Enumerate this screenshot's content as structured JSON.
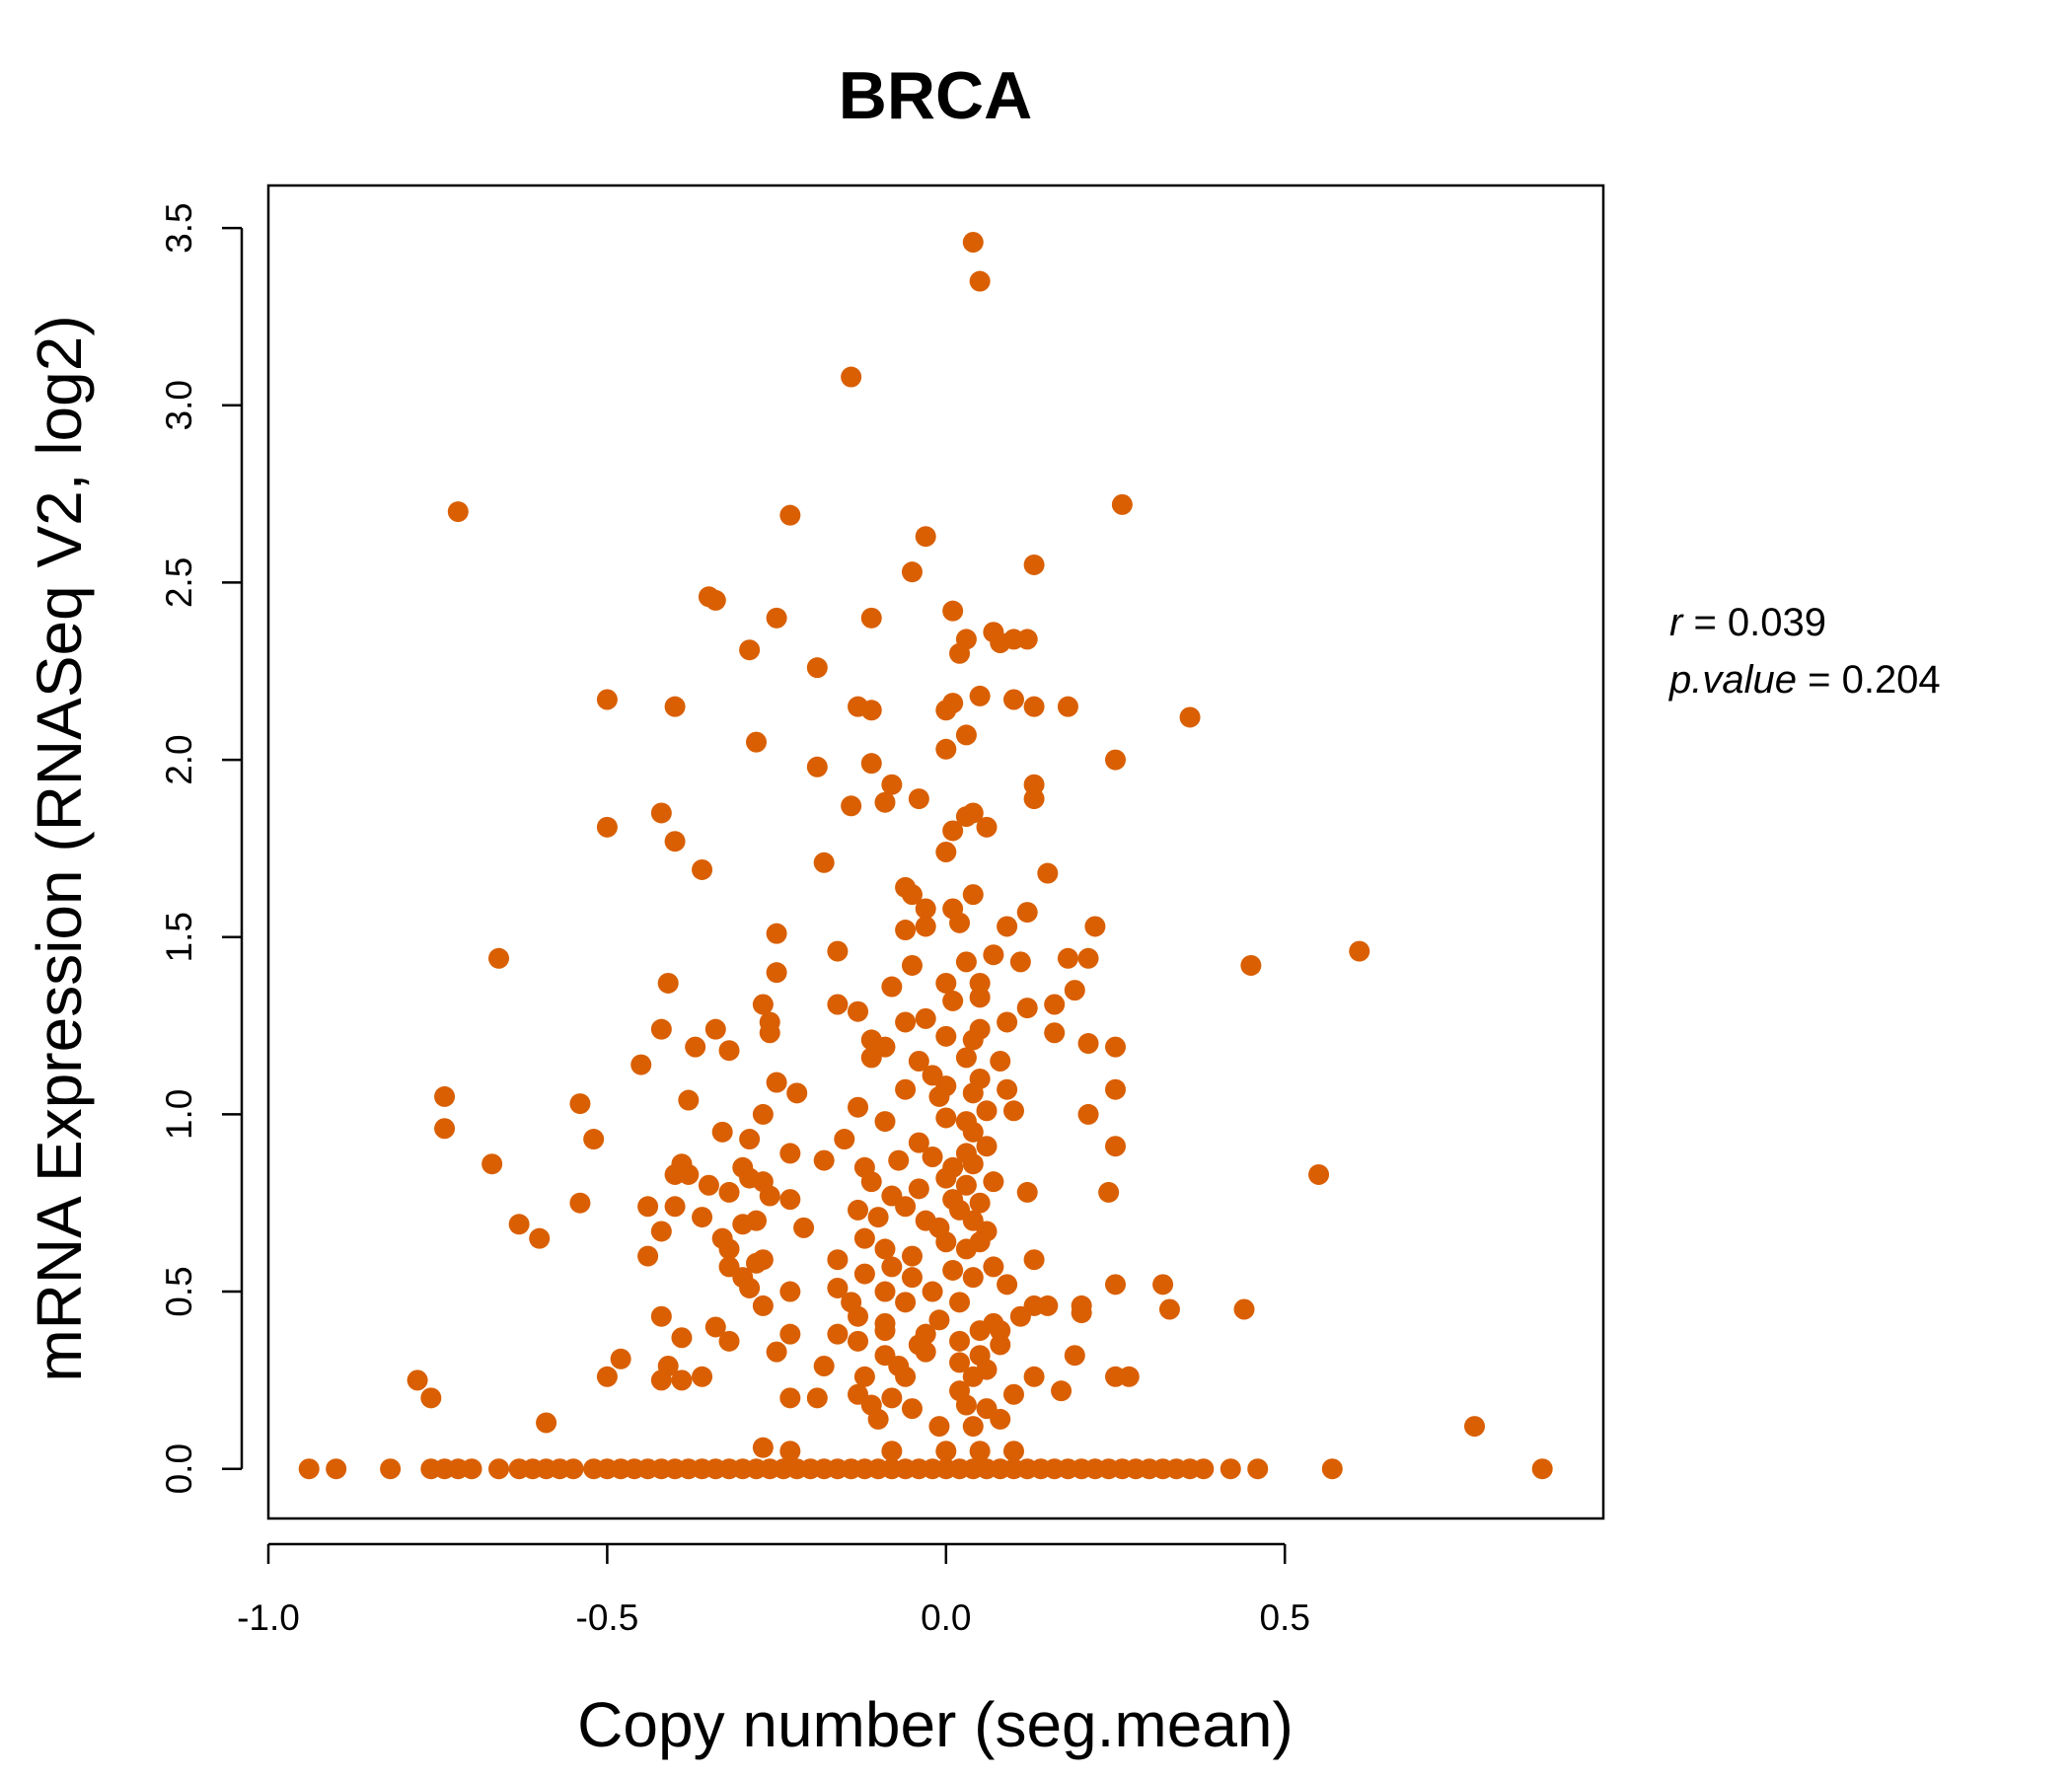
{
  "chart_data": {
    "type": "scatter",
    "title": "BRCA",
    "xlabel": "Copy number (seg.mean)",
    "ylabel": "mRNA Expression (RNASeq V2, log2)",
    "xlim": [
      -1.0,
      0.97
    ],
    "ylim": [
      -0.14,
      3.62
    ],
    "x_ticks": [
      -1.0,
      -0.5,
      0.0,
      0.5
    ],
    "x_tick_labels": [
      "-1.0",
      "-0.5",
      "0.0",
      "0.5"
    ],
    "y_ticks": [
      0.0,
      0.5,
      1.0,
      1.5,
      2.0,
      2.5,
      3.0,
      3.5
    ],
    "y_tick_labels": [
      "0.0",
      "0.5",
      "1.0",
      "1.5",
      "2.0",
      "2.5",
      "3.0",
      "3.5"
    ],
    "grid": false,
    "point_color": "#D95F02",
    "stats": {
      "r_symbol": "r",
      "r_value": "0.039",
      "p_symbol": "p.value",
      "p_value": "0.204"
    },
    "points": [
      [
        0.04,
        3.46
      ],
      [
        0.05,
        3.35
      ],
      [
        -0.14,
        3.08
      ],
      [
        -0.72,
        2.7
      ],
      [
        0.26,
        2.72
      ],
      [
        -0.23,
        2.69
      ],
      [
        -0.03,
        2.63
      ],
      [
        -0.05,
        2.53
      ],
      [
        0.13,
        2.55
      ],
      [
        -0.35,
        2.46
      ],
      [
        -0.34,
        2.45
      ],
      [
        -0.25,
        2.4
      ],
      [
        -0.11,
        2.4
      ],
      [
        0.01,
        2.42
      ],
      [
        0.03,
        2.34
      ],
      [
        0.07,
        2.36
      ],
      [
        0.08,
        2.33
      ],
      [
        0.1,
        2.34
      ],
      [
        0.12,
        2.34
      ],
      [
        0.02,
        2.3
      ],
      [
        -0.29,
        2.31
      ],
      [
        -0.19,
        2.26
      ],
      [
        -0.5,
        2.17
      ],
      [
        -0.4,
        2.15
      ],
      [
        -0.13,
        2.15
      ],
      [
        -0.11,
        2.14
      ],
      [
        0.0,
        2.14
      ],
      [
        0.01,
        2.16
      ],
      [
        0.05,
        2.18
      ],
      [
        0.1,
        2.17
      ],
      [
        0.13,
        2.15
      ],
      [
        0.18,
        2.15
      ],
      [
        0.36,
        2.12
      ],
      [
        0.03,
        2.07
      ],
      [
        -0.28,
        2.05
      ],
      [
        0.0,
        2.03
      ],
      [
        0.25,
        2.0
      ],
      [
        -0.19,
        1.98
      ],
      [
        -0.11,
        1.99
      ],
      [
        -0.08,
        1.93
      ],
      [
        0.13,
        1.93
      ],
      [
        -0.42,
        1.85
      ],
      [
        -0.14,
        1.87
      ],
      [
        -0.09,
        1.88
      ],
      [
        -0.04,
        1.89
      ],
      [
        0.03,
        1.84
      ],
      [
        0.04,
        1.85
      ],
      [
        0.13,
        1.89
      ],
      [
        -0.5,
        1.81
      ],
      [
        0.01,
        1.8
      ],
      [
        0.06,
        1.81
      ],
      [
        -0.4,
        1.77
      ],
      [
        0.0,
        1.74
      ],
      [
        -0.36,
        1.69
      ],
      [
        -0.18,
        1.71
      ],
      [
        0.15,
        1.68
      ],
      [
        -0.06,
        1.64
      ],
      [
        -0.05,
        1.62
      ],
      [
        0.04,
        1.62
      ],
      [
        -0.03,
        1.58
      ],
      [
        0.01,
        1.58
      ],
      [
        0.12,
        1.57
      ],
      [
        -0.25,
        1.51
      ],
      [
        -0.06,
        1.52
      ],
      [
        -0.03,
        1.53
      ],
      [
        0.02,
        1.54
      ],
      [
        0.09,
        1.53
      ],
      [
        0.22,
        1.53
      ],
      [
        -0.66,
        1.44
      ],
      [
        -0.16,
        1.46
      ],
      [
        -0.05,
        1.42
      ],
      [
        0.03,
        1.43
      ],
      [
        0.07,
        1.45
      ],
      [
        0.11,
        1.43
      ],
      [
        0.18,
        1.44
      ],
      [
        0.21,
        1.44
      ],
      [
        0.45,
        1.42
      ],
      [
        0.61,
        1.46
      ],
      [
        -0.25,
        1.4
      ],
      [
        -0.41,
        1.37
      ],
      [
        -0.08,
        1.36
      ],
      [
        0.0,
        1.37
      ],
      [
        0.05,
        1.37
      ],
      [
        0.19,
        1.35
      ],
      [
        -0.27,
        1.31
      ],
      [
        -0.16,
        1.31
      ],
      [
        -0.13,
        1.29
      ],
      [
        0.01,
        1.32
      ],
      [
        0.05,
        1.33
      ],
      [
        0.12,
        1.3
      ],
      [
        0.16,
        1.31
      ],
      [
        -0.26,
        1.26
      ],
      [
        -0.42,
        1.24
      ],
      [
        -0.34,
        1.24
      ],
      [
        -0.06,
        1.26
      ],
      [
        -0.03,
        1.27
      ],
      [
        0.05,
        1.24
      ],
      [
        0.09,
        1.26
      ],
      [
        -0.26,
        1.23
      ],
      [
        -0.11,
        1.21
      ],
      [
        0.16,
        1.23
      ],
      [
        -0.37,
        1.19
      ],
      [
        -0.32,
        1.18
      ],
      [
        -0.09,
        1.19
      ],
      [
        0.0,
        1.22
      ],
      [
        0.04,
        1.21
      ],
      [
        0.21,
        1.2
      ],
      [
        0.25,
        1.19
      ],
      [
        -0.45,
        1.14
      ],
      [
        -0.11,
        1.16
      ],
      [
        -0.04,
        1.15
      ],
      [
        0.03,
        1.16
      ],
      [
        0.08,
        1.15
      ],
      [
        -0.02,
        1.11
      ],
      [
        0.05,
        1.1
      ],
      [
        -0.25,
        1.09
      ],
      [
        -0.06,
        1.07
      ],
      [
        0.0,
        1.08
      ],
      [
        0.09,
        1.07
      ],
      [
        0.25,
        1.07
      ],
      [
        -0.74,
        1.05
      ],
      [
        -0.38,
        1.04
      ],
      [
        -0.22,
        1.06
      ],
      [
        -0.01,
        1.05
      ],
      [
        0.04,
        1.06
      ],
      [
        -0.54,
        1.03
      ],
      [
        -0.13,
        1.02
      ],
      [
        0.06,
        1.01
      ],
      [
        0.1,
        1.01
      ],
      [
        0.21,
        1.0
      ],
      [
        -0.27,
        1.0
      ],
      [
        -0.09,
        0.98
      ],
      [
        0.0,
        0.99
      ],
      [
        0.03,
        0.98
      ],
      [
        -0.74,
        0.96
      ],
      [
        -0.33,
        0.95
      ],
      [
        -0.29,
        0.93
      ],
      [
        0.04,
        0.95
      ],
      [
        -0.52,
        0.93
      ],
      [
        -0.15,
        0.93
      ],
      [
        -0.04,
        0.92
      ],
      [
        0.06,
        0.91
      ],
      [
        0.25,
        0.91
      ],
      [
        -0.23,
        0.89
      ],
      [
        -0.02,
        0.88
      ],
      [
        0.03,
        0.89
      ],
      [
        -0.67,
        0.86
      ],
      [
        -0.39,
        0.86
      ],
      [
        -0.3,
        0.85
      ],
      [
        -0.18,
        0.87
      ],
      [
        -0.12,
        0.85
      ],
      [
        -0.07,
        0.87
      ],
      [
        0.01,
        0.85
      ],
      [
        0.04,
        0.86
      ],
      [
        -0.4,
        0.83
      ],
      [
        -0.38,
        0.83
      ],
      [
        -0.29,
        0.82
      ],
      [
        -0.27,
        0.81
      ],
      [
        0.0,
        0.82
      ],
      [
        0.07,
        0.81
      ],
      [
        0.55,
        0.83
      ],
      [
        -0.35,
        0.8
      ],
      [
        -0.26,
        0.77
      ],
      [
        -0.11,
        0.81
      ],
      [
        -0.04,
        0.79
      ],
      [
        0.03,
        0.8
      ],
      [
        0.12,
        0.78
      ],
      [
        0.24,
        0.78
      ],
      [
        -0.32,
        0.78
      ],
      [
        -0.23,
        0.76
      ],
      [
        -0.08,
        0.77
      ],
      [
        0.01,
        0.76
      ],
      [
        0.05,
        0.75
      ],
      [
        -0.54,
        0.75
      ],
      [
        -0.44,
        0.74
      ],
      [
        -0.4,
        0.74
      ],
      [
        -0.13,
        0.73
      ],
      [
        -0.06,
        0.74
      ],
      [
        0.02,
        0.73
      ],
      [
        -0.36,
        0.71
      ],
      [
        -0.28,
        0.7
      ],
      [
        -0.1,
        0.71
      ],
      [
        -0.03,
        0.7
      ],
      [
        0.04,
        0.7
      ],
      [
        -0.63,
        0.69
      ],
      [
        -0.3,
        0.69
      ],
      [
        -0.42,
        0.67
      ],
      [
        -0.21,
        0.68
      ],
      [
        -0.01,
        0.68
      ],
      [
        0.06,
        0.67
      ],
      [
        -0.6,
        0.65
      ],
      [
        -0.33,
        0.65
      ],
      [
        -0.12,
        0.65
      ],
      [
        0.0,
        0.64
      ],
      [
        0.05,
        0.64
      ],
      [
        -0.32,
        0.62
      ],
      [
        -0.09,
        0.62
      ],
      [
        0.03,
        0.62
      ],
      [
        -0.27,
        0.59
      ],
      [
        -0.44,
        0.6
      ],
      [
        -0.16,
        0.59
      ],
      [
        -0.05,
        0.6
      ],
      [
        0.13,
        0.59
      ],
      [
        -0.32,
        0.57
      ],
      [
        -0.28,
        0.58
      ],
      [
        -0.08,
        0.57
      ],
      [
        0.01,
        0.56
      ],
      [
        0.07,
        0.57
      ],
      [
        -0.3,
        0.54
      ],
      [
        -0.12,
        0.55
      ],
      [
        -0.05,
        0.54
      ],
      [
        0.04,
        0.54
      ],
      [
        -0.29,
        0.51
      ],
      [
        -0.23,
        0.5
      ],
      [
        -0.16,
        0.51
      ],
      [
        -0.09,
        0.5
      ],
      [
        -0.02,
        0.5
      ],
      [
        0.09,
        0.52
      ],
      [
        0.25,
        0.52
      ],
      [
        0.32,
        0.52
      ],
      [
        -0.27,
        0.46
      ],
      [
        -0.14,
        0.47
      ],
      [
        -0.06,
        0.47
      ],
      [
        0.02,
        0.47
      ],
      [
        0.13,
        0.46
      ],
      [
        0.15,
        0.46
      ],
      [
        0.2,
        0.46
      ],
      [
        0.33,
        0.45
      ],
      [
        0.44,
        0.45
      ],
      [
        -0.42,
        0.43
      ],
      [
        -0.13,
        0.43
      ],
      [
        -0.09,
        0.41
      ],
      [
        -0.01,
        0.42
      ],
      [
        0.07,
        0.41
      ],
      [
        0.11,
        0.43
      ],
      [
        0.2,
        0.44
      ],
      [
        -0.34,
        0.4
      ],
      [
        -0.23,
        0.38
      ],
      [
        -0.16,
        0.38
      ],
      [
        -0.09,
        0.39
      ],
      [
        -0.03,
        0.38
      ],
      [
        0.05,
        0.39
      ],
      [
        0.08,
        0.39
      ],
      [
        -0.32,
        0.36
      ],
      [
        -0.39,
        0.37
      ],
      [
        -0.13,
        0.36
      ],
      [
        -0.04,
        0.35
      ],
      [
        0.02,
        0.36
      ],
      [
        0.08,
        0.35
      ],
      [
        -0.48,
        0.31
      ],
      [
        -0.25,
        0.33
      ],
      [
        -0.09,
        0.32
      ],
      [
        -0.03,
        0.33
      ],
      [
        0.05,
        0.32
      ],
      [
        0.19,
        0.32
      ],
      [
        -0.41,
        0.29
      ],
      [
        -0.18,
        0.29
      ],
      [
        -0.07,
        0.29
      ],
      [
        0.02,
        0.3
      ],
      [
        0.06,
        0.28
      ],
      [
        -0.5,
        0.26
      ],
      [
        -0.42,
        0.25
      ],
      [
        -0.36,
        0.26
      ],
      [
        -0.39,
        0.25
      ],
      [
        -0.12,
        0.26
      ],
      [
        -0.06,
        0.26
      ],
      [
        0.04,
        0.26
      ],
      [
        0.13,
        0.26
      ],
      [
        0.25,
        0.26
      ],
      [
        0.27,
        0.26
      ],
      [
        -0.78,
        0.25
      ],
      [
        -0.76,
        0.2
      ],
      [
        -0.23,
        0.2
      ],
      [
        -0.19,
        0.2
      ],
      [
        -0.13,
        0.21
      ],
      [
        -0.08,
        0.2
      ],
      [
        0.02,
        0.22
      ],
      [
        0.1,
        0.21
      ],
      [
        0.17,
        0.22
      ],
      [
        -0.11,
        0.18
      ],
      [
        -0.05,
        0.17
      ],
      [
        0.03,
        0.18
      ],
      [
        0.06,
        0.17
      ],
      [
        -0.1,
        0.14
      ],
      [
        0.08,
        0.14
      ],
      [
        -0.59,
        0.13
      ],
      [
        0.78,
        0.12
      ],
      [
        -0.01,
        0.12
      ],
      [
        0.04,
        0.12
      ],
      [
        -0.27,
        0.06
      ],
      [
        -0.23,
        0.05
      ],
      [
        -0.08,
        0.05
      ],
      [
        0.0,
        0.05
      ],
      [
        0.05,
        0.05
      ],
      [
        0.1,
        0.05
      ],
      [
        -0.94,
        0.0
      ],
      [
        -0.9,
        0.0
      ],
      [
        -0.82,
        0.0
      ],
      [
        -0.76,
        0.0
      ],
      [
        -0.74,
        0.0
      ],
      [
        -0.72,
        0.0
      ],
      [
        -0.7,
        0.0
      ],
      [
        -0.66,
        0.0
      ],
      [
        -0.63,
        0.0
      ],
      [
        -0.61,
        0.0
      ],
      [
        -0.59,
        0.0
      ],
      [
        -0.57,
        0.0
      ],
      [
        -0.55,
        0.0
      ],
      [
        -0.52,
        0.0
      ],
      [
        -0.5,
        0.0
      ],
      [
        -0.48,
        0.0
      ],
      [
        -0.46,
        0.0
      ],
      [
        -0.44,
        0.0
      ],
      [
        -0.42,
        0.0
      ],
      [
        -0.4,
        0.0
      ],
      [
        -0.38,
        0.0
      ],
      [
        -0.36,
        0.0
      ],
      [
        -0.34,
        0.0
      ],
      [
        -0.32,
        0.0
      ],
      [
        -0.3,
        0.0
      ],
      [
        -0.28,
        0.0
      ],
      [
        -0.26,
        0.0
      ],
      [
        -0.24,
        0.0
      ],
      [
        -0.22,
        0.0
      ],
      [
        -0.2,
        0.0
      ],
      [
        -0.18,
        0.0
      ],
      [
        -0.16,
        0.0
      ],
      [
        -0.14,
        0.0
      ],
      [
        -0.12,
        0.0
      ],
      [
        -0.1,
        0.0
      ],
      [
        -0.08,
        0.0
      ],
      [
        -0.06,
        0.0
      ],
      [
        -0.04,
        0.0
      ],
      [
        -0.02,
        0.0
      ],
      [
        0.0,
        0.0
      ],
      [
        0.02,
        0.0
      ],
      [
        0.04,
        0.0
      ],
      [
        0.06,
        0.0
      ],
      [
        0.08,
        0.0
      ],
      [
        0.1,
        0.0
      ],
      [
        0.12,
        0.0
      ],
      [
        0.14,
        0.0
      ],
      [
        0.16,
        0.0
      ],
      [
        0.18,
        0.0
      ],
      [
        0.2,
        0.0
      ],
      [
        0.22,
        0.0
      ],
      [
        0.24,
        0.0
      ],
      [
        0.26,
        0.0
      ],
      [
        0.28,
        0.0
      ],
      [
        0.3,
        0.0
      ],
      [
        0.32,
        0.0
      ],
      [
        0.34,
        0.0
      ],
      [
        0.36,
        0.0
      ],
      [
        0.38,
        0.0
      ],
      [
        0.42,
        0.0
      ],
      [
        0.46,
        0.0
      ],
      [
        0.57,
        0.0
      ],
      [
        0.88,
        0.0
      ]
    ]
  }
}
